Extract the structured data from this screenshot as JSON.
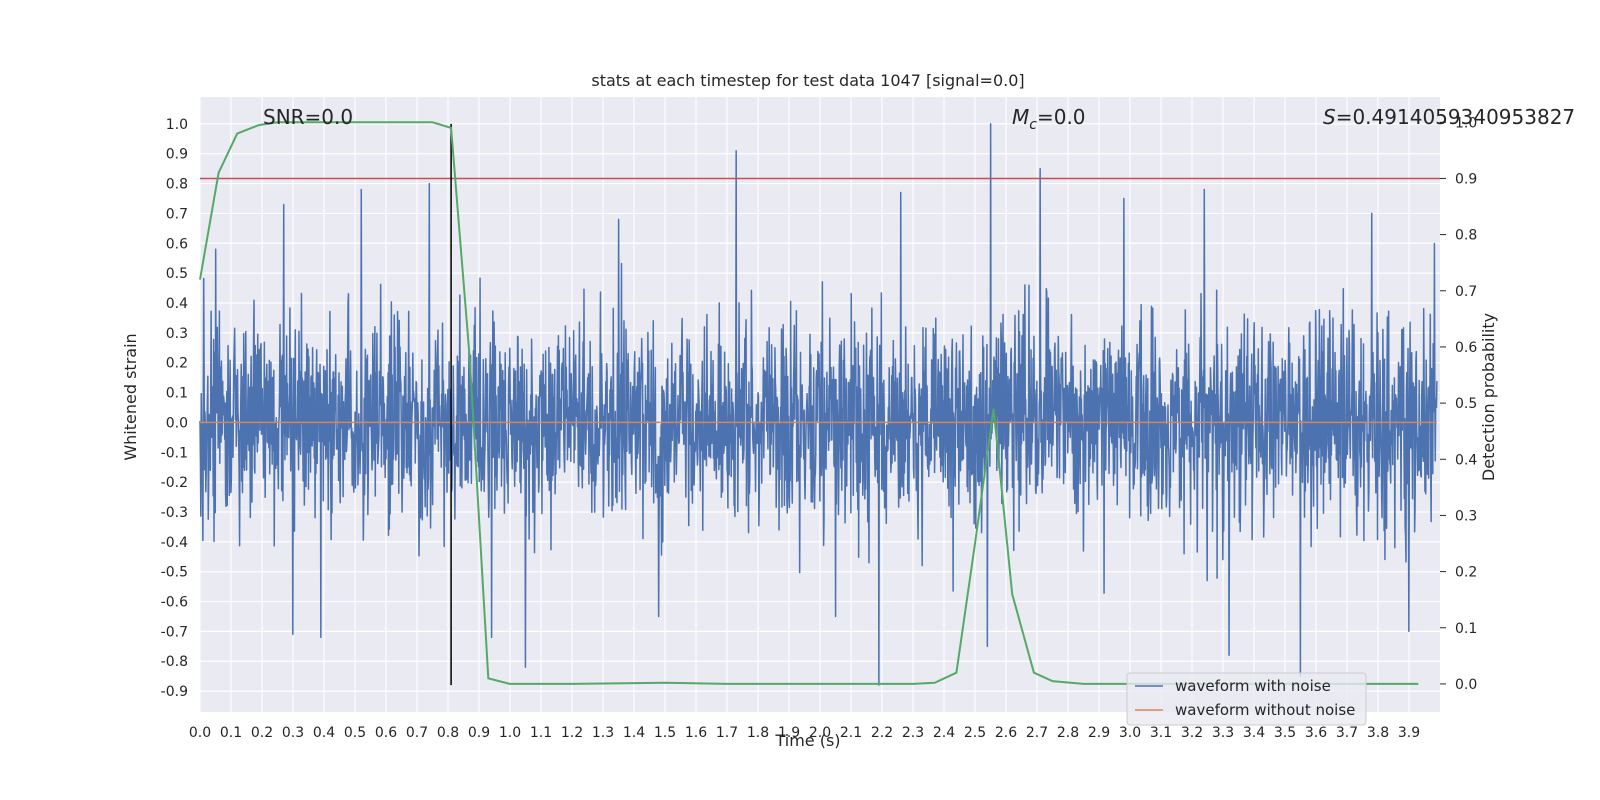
{
  "chart_data": {
    "type": "line",
    "title": "stats at each timestep for test data 1047 [signal=0.0]",
    "xlabel": "Time (s)",
    "ylabel": "Whitened strain",
    "y2label": "Detection probability",
    "xlim": [
      0.0,
      4.0
    ],
    "ylim": [
      -0.97,
      1.09
    ],
    "y2lim": [
      -0.05,
      1.045
    ],
    "x_ticks": [
      "0.0",
      "0.1",
      "0.2",
      "0.3",
      "0.4",
      "0.5",
      "0.6",
      "0.7",
      "0.8",
      "0.9",
      "1.0",
      "1.1",
      "1.2",
      "1.3",
      "1.4",
      "1.5",
      "1.6",
      "1.7",
      "1.8",
      "1.9",
      "2.0",
      "2.1",
      "2.2",
      "2.3",
      "2.4",
      "2.5",
      "2.6",
      "2.7",
      "2.8",
      "2.9",
      "3.0",
      "3.1",
      "3.2",
      "3.3",
      "3.4",
      "3.5",
      "3.6",
      "3.7",
      "3.8",
      "3.9"
    ],
    "y_ticks": [
      "1.0",
      "0.9",
      "0.8",
      "0.7",
      "0.6",
      "0.5",
      "0.4",
      "0.3",
      "0.2",
      "0.1",
      "0.0",
      "-0.1",
      "-0.2",
      "-0.3",
      "-0.4",
      "-0.5",
      "-0.6",
      "-0.7",
      "-0.8",
      "-0.9"
    ],
    "y2_ticks": [
      "1.0",
      "0.9",
      "0.8",
      "0.7",
      "0.6",
      "0.5",
      "0.4",
      "0.3",
      "0.2",
      "0.1",
      "0.0"
    ],
    "annotations": {
      "snr": "SNR=0.0",
      "mc_symbol": "M",
      "mc_sub": "c",
      "mc_value": "=0.0",
      "s_symbol": "S",
      "s_value": "=0.4914059340953827"
    },
    "threshold": 0.9,
    "event_time": 0.81,
    "series": [
      {
        "name": "waveform with noise",
        "color": "#4c72b0",
        "noise_sigma": 0.17,
        "spikes": [
          {
            "x": 0.27,
            "y": 0.73
          },
          {
            "x": 0.3,
            "y": -0.71
          },
          {
            "x": 0.39,
            "y": -0.72
          },
          {
            "x": 0.52,
            "y": 0.78
          },
          {
            "x": 0.74,
            "y": 0.8
          },
          {
            "x": 0.94,
            "y": -0.72
          },
          {
            "x": 1.05,
            "y": -0.82
          },
          {
            "x": 1.73,
            "y": 0.91
          },
          {
            "x": 2.19,
            "y": -0.88
          },
          {
            "x": 2.26,
            "y": 0.77
          },
          {
            "x": 2.55,
            "y": 1.0
          },
          {
            "x": 2.54,
            "y": -0.75
          },
          {
            "x": 2.71,
            "y": 0.85
          },
          {
            "x": 3.24,
            "y": 0.78
          },
          {
            "x": 3.32,
            "y": -0.78
          },
          {
            "x": 3.55,
            "y": -0.85
          },
          {
            "x": 3.9,
            "y": -0.7
          },
          {
            "x": 0.05,
            "y": 0.58
          },
          {
            "x": 1.35,
            "y": 0.68
          },
          {
            "x": 1.48,
            "y": -0.65
          },
          {
            "x": 2.05,
            "y": -0.65
          },
          {
            "x": 2.98,
            "y": 0.75
          },
          {
            "x": 3.78,
            "y": 0.7
          }
        ]
      },
      {
        "name": "waveform without noise",
        "color": "#dd8452",
        "x": [
          0.0,
          3.99
        ],
        "y": [
          0.0,
          0.0
        ]
      },
      {
        "name": "detection probability",
        "color": "#55a868",
        "axis": "right",
        "x": [
          0.0,
          0.06,
          0.12,
          0.19,
          0.25,
          0.31,
          0.37,
          0.44,
          0.5,
          0.56,
          0.62,
          0.69,
          0.75,
          0.81,
          0.87,
          0.93,
          1.0,
          1.06,
          1.2,
          1.5,
          1.7,
          2.0,
          2.3,
          2.37,
          2.44,
          2.5,
          2.56,
          2.62,
          2.69,
          2.75,
          2.85,
          3.0,
          3.3,
          3.6,
          3.93
        ],
        "y": [
          0.72,
          0.91,
          0.98,
          0.995,
          1.0,
          1.0,
          1.0,
          1.0,
          1.0,
          1.0,
          1.0,
          1.0,
          1.0,
          0.99,
          0.58,
          0.01,
          0.0,
          0.0,
          0.0,
          0.002,
          0.0,
          0.0,
          0.0,
          0.002,
          0.02,
          0.25,
          0.49,
          0.16,
          0.02,
          0.005,
          0.0,
          0.0,
          0.0,
          0.0,
          0.0
        ]
      }
    ],
    "legend": {
      "position": "bottom-right",
      "entries": [
        {
          "label": "waveform with noise",
          "color": "#4c72b0"
        },
        {
          "label": "waveform without noise",
          "color": "#dd8452"
        }
      ]
    },
    "colors": {
      "plot_bg": "#eaeaf2",
      "grid": "#ffffff",
      "threshold": "#c44e52",
      "event_line": "#000000"
    }
  }
}
